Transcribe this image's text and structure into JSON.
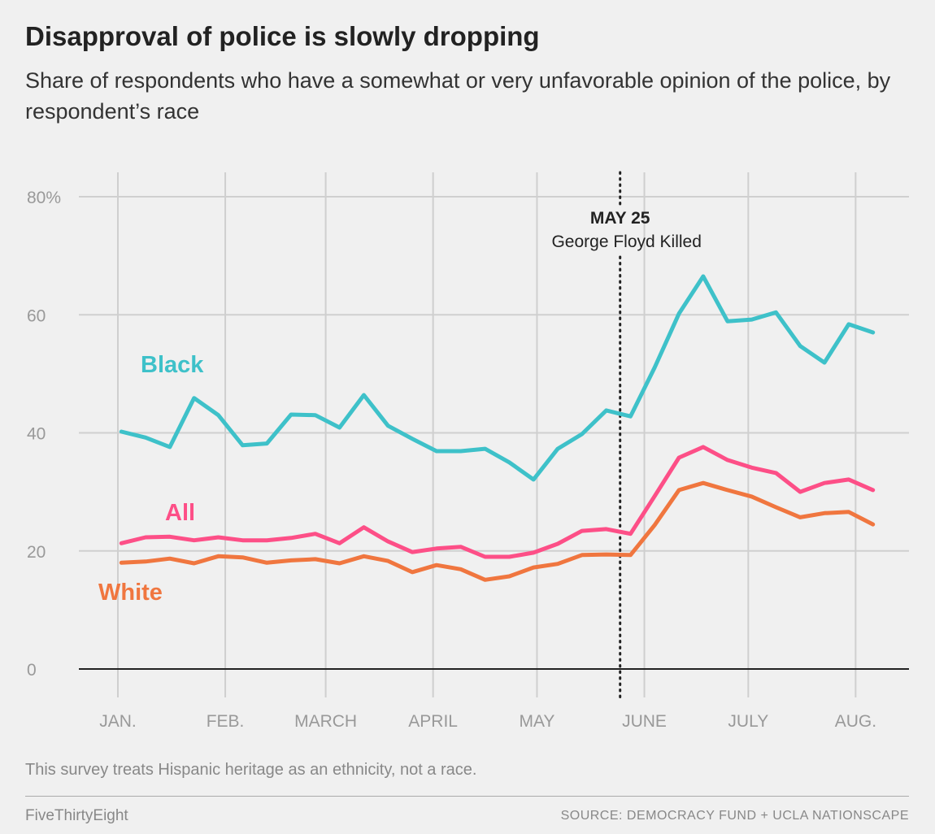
{
  "header": {
    "title": "Disapproval of police is slowly dropping",
    "subtitle": "Share of respondents who have a somewhat or very unfavorable opinion of the police, by respondent’s race"
  },
  "footer": {
    "note": "This survey treats Hispanic heritage as an ethnicity, not a race.",
    "brand": "FiveThirtyEight",
    "source": "SOURCE: DEMOCRACY FUND + UCLA NATIONSCAPE"
  },
  "chart_data": {
    "type": "line",
    "ylim": [
      0,
      80
    ],
    "yticks": [
      0,
      20,
      40,
      60,
      80
    ],
    "ytick_labels": [
      "0",
      "20",
      "40",
      "60",
      "80%"
    ],
    "xticks": [
      {
        "date": "Jan 1",
        "label": "JAN."
      },
      {
        "date": "Feb 1",
        "label": "FEB."
      },
      {
        "date": "Mar 1",
        "label": "MARCH"
      },
      {
        "date": "Apr 1",
        "label": "APRIL"
      },
      {
        "date": "May 1",
        "label": "MAY"
      },
      {
        "date": "Jun 1",
        "label": "JUNE"
      },
      {
        "date": "Jul 1",
        "label": "JULY"
      },
      {
        "date": "Aug 1",
        "label": "AUG."
      }
    ],
    "grid": true,
    "x": [
      "Jan 2",
      "Jan 9",
      "Jan 16",
      "Jan 23",
      "Jan 30",
      "Feb 6",
      "Feb 13",
      "Feb 20",
      "Feb 27",
      "Mar 5",
      "Mar 12",
      "Mar 19",
      "Mar 26",
      "Apr 2",
      "Apr 9",
      "Apr 16",
      "Apr 23",
      "Apr 30",
      "May 7",
      "May 14",
      "May 21",
      "May 28",
      "Jun 4",
      "Jun 11",
      "Jun 18",
      "Jun 25",
      "Jul 2",
      "Jul 9",
      "Jul 16",
      "Jul 23",
      "Jul 30",
      "Aug 6"
    ],
    "series": [
      {
        "name": "Black",
        "color": "#3ec1c9",
        "values": [
          40.2,
          39.2,
          37.6,
          45.9,
          43.0,
          37.9,
          38.2,
          43.1,
          43.0,
          40.9,
          46.4,
          41.2,
          39.0,
          36.9,
          36.9,
          37.3,
          35.0,
          32.1,
          37.3,
          39.8,
          43.8,
          42.8,
          51.1,
          60.2,
          66.5,
          58.9,
          59.2,
          60.4,
          54.7,
          51.9,
          58.4,
          57.0
        ]
      },
      {
        "name": "All",
        "color": "#fd4f87",
        "values": [
          21.3,
          22.3,
          22.4,
          21.8,
          22.3,
          21.8,
          21.8,
          22.2,
          22.9,
          21.3,
          24.0,
          21.6,
          19.8,
          20.4,
          20.7,
          19.0,
          19.0,
          19.7,
          21.2,
          23.4,
          23.7,
          22.9,
          29.3,
          35.8,
          37.6,
          35.4,
          34.1,
          33.2,
          30.0,
          31.5,
          32.1,
          30.3
        ]
      },
      {
        "name": "White",
        "color": "#f0763f",
        "values": [
          18.0,
          18.2,
          18.7,
          17.9,
          19.1,
          18.9,
          18.0,
          18.4,
          18.6,
          17.9,
          19.1,
          18.3,
          16.4,
          17.6,
          16.9,
          15.1,
          15.7,
          17.2,
          17.8,
          19.3,
          19.4,
          19.3,
          24.4,
          30.3,
          31.5,
          30.3,
          29.2,
          27.4,
          25.7,
          26.4,
          26.6,
          24.5
        ]
      }
    ],
    "annotation": {
      "date": "May 25",
      "title": "MAY 25",
      "text": "George Floyd Killed"
    }
  }
}
